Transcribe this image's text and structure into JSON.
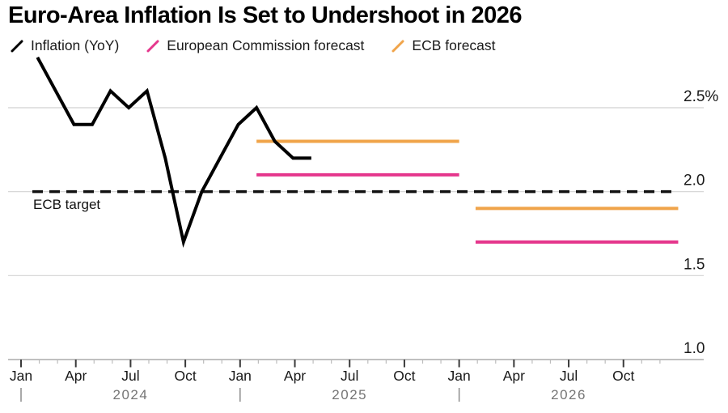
{
  "title": "Euro-Area Inflation Is Set to Undershoot in 2026",
  "legend": {
    "items": [
      {
        "label": "Inflation (YoY)",
        "color": "#000000"
      },
      {
        "label": "European Commission forecast",
        "color": "#e5368c"
      },
      {
        "label": "ECB forecast",
        "color": "#f0a44a"
      }
    ]
  },
  "chart_data": {
    "type": "line",
    "title": "Euro-Area Inflation Is Set to Undershoot in 2026",
    "y_unit": "percent YoY",
    "ylim": [
      1.0,
      2.85
    ],
    "grid": "horizontal",
    "legend_position": "top",
    "yticks": [
      {
        "value": 2.5,
        "label": "2.5%"
      },
      {
        "value": 2.0,
        "label": "2.0"
      },
      {
        "value": 1.5,
        "label": "1.5"
      },
      {
        "value": 1.0,
        "label": "1.0"
      }
    ],
    "xticks_major": [
      {
        "month_index": 0,
        "label": "Jan"
      },
      {
        "month_index": 3,
        "label": "Apr"
      },
      {
        "month_index": 6,
        "label": "Jul"
      },
      {
        "month_index": 9,
        "label": "Oct"
      },
      {
        "month_index": 12,
        "label": "Jan"
      },
      {
        "month_index": 15,
        "label": "Apr"
      },
      {
        "month_index": 18,
        "label": "Jul"
      },
      {
        "month_index": 21,
        "label": "Oct"
      },
      {
        "month_index": 24,
        "label": "Jan"
      },
      {
        "month_index": 27,
        "label": "Apr"
      },
      {
        "month_index": 30,
        "label": "Jul"
      },
      {
        "month_index": 33,
        "label": "Oct"
      }
    ],
    "minor_ticks_monthly": true,
    "years": [
      {
        "label": "2024",
        "start_month_index": 0,
        "center_month_index": 6
      },
      {
        "label": "2025",
        "start_month_index": 12,
        "center_month_index": 18
      },
      {
        "label": "2026",
        "start_month_index": 24,
        "center_month_index": 30
      }
    ],
    "target_line": {
      "label": "ECB target",
      "value": 2.0,
      "color": "#111111",
      "style": "dashed"
    },
    "series": [
      {
        "name": "Inflation (YoY)",
        "color": "#000000",
        "points": [
          {
            "month": "Jan 2024",
            "value": 2.8
          },
          {
            "month": "Feb 2024",
            "value": 2.6
          },
          {
            "month": "Mar 2024",
            "value": 2.4
          },
          {
            "month": "Apr 2024",
            "value": 2.4
          },
          {
            "month": "May 2024",
            "value": 2.6
          },
          {
            "month": "Jun 2024",
            "value": 2.5
          },
          {
            "month": "Jul 2024",
            "value": 2.6
          },
          {
            "month": "Aug 2024",
            "value": 2.2
          },
          {
            "month": "Sep 2024",
            "value": 1.7
          },
          {
            "month": "Oct 2024",
            "value": 2.0
          },
          {
            "month": "Nov 2024",
            "value": 2.2
          },
          {
            "month": "Dec 2024",
            "value": 2.4
          },
          {
            "month": "Jan 2025",
            "value": 2.5
          },
          {
            "month": "Feb 2025",
            "value": 2.3
          },
          {
            "month": "Mar 2025",
            "value": 2.2
          },
          {
            "month": "Apr 2025",
            "value": 2.2
          }
        ]
      },
      {
        "name": "European Commission forecast",
        "color": "#e5368c",
        "segments": [
          {
            "period": "2025",
            "value": 2.1,
            "start_month_index": 12,
            "end_month_index": 24
          },
          {
            "period": "2026",
            "value": 1.7,
            "start_month_index": 24,
            "end_month_index": 36
          }
        ]
      },
      {
        "name": "ECB forecast",
        "color": "#f0a44a",
        "segments": [
          {
            "period": "2025",
            "value": 2.3,
            "start_month_index": 12,
            "end_month_index": 24
          },
          {
            "period": "2026",
            "value": 1.9,
            "start_month_index": 24,
            "end_month_index": 36
          }
        ]
      }
    ]
  }
}
